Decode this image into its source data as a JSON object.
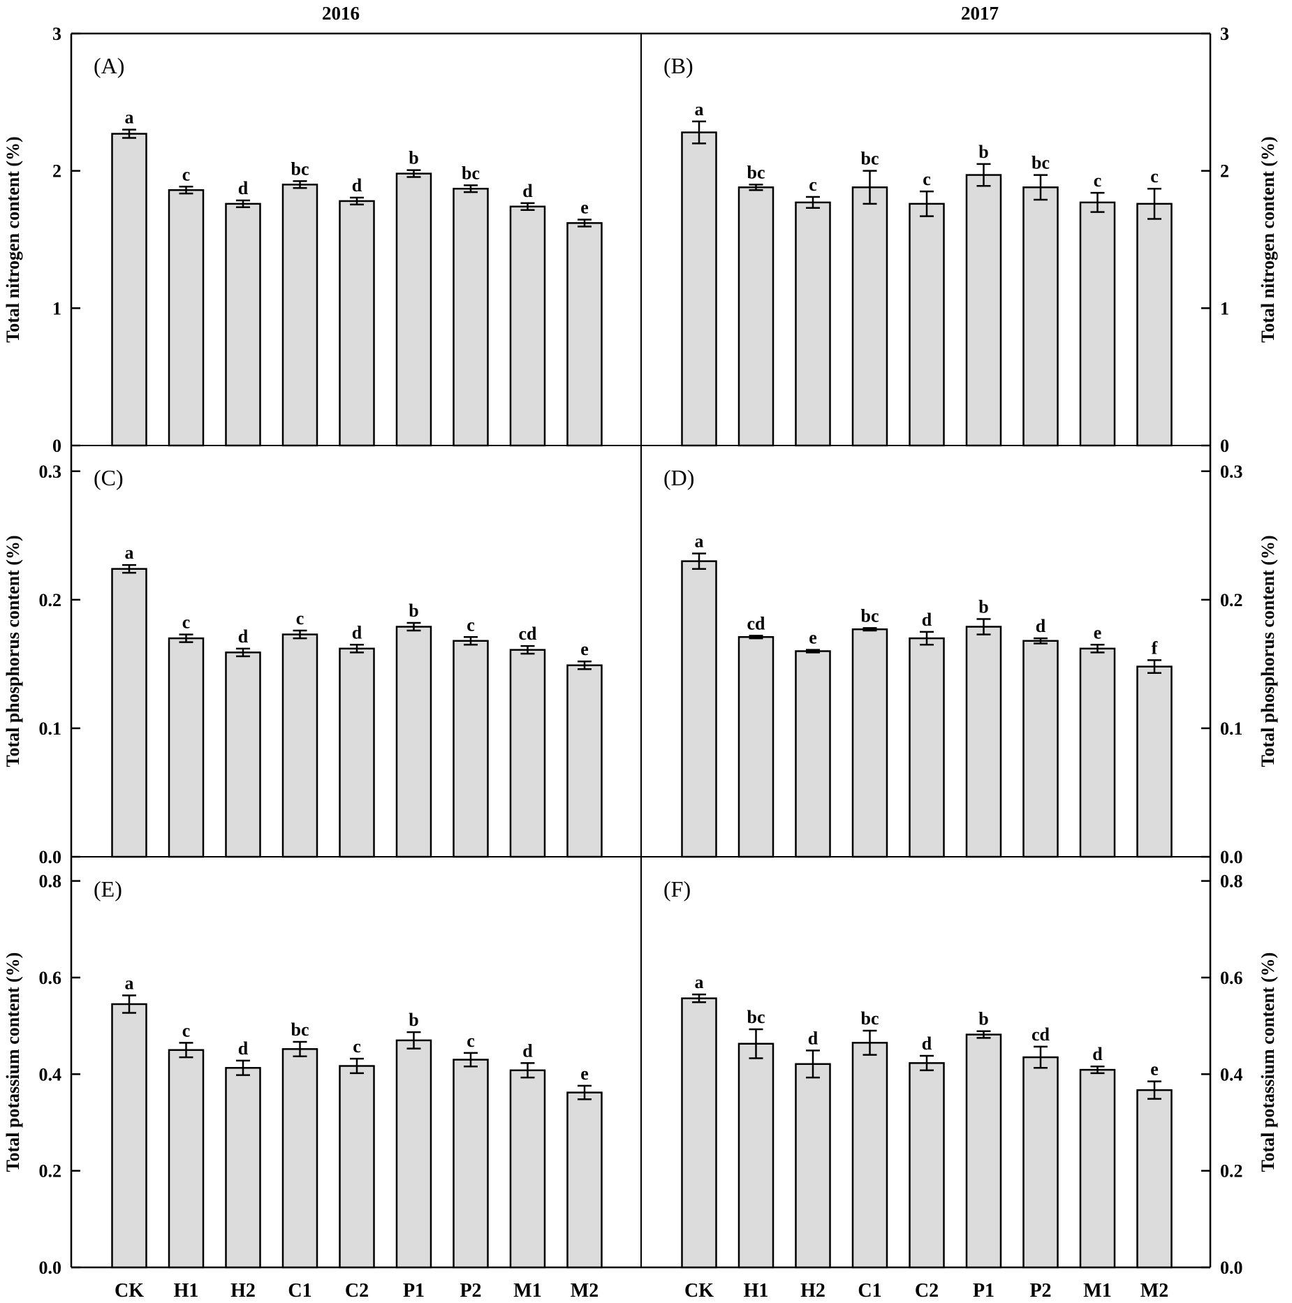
{
  "chart_data": {
    "type": "bar",
    "year_titles": [
      "2016",
      "2017"
    ],
    "categories": [
      "CK",
      "H1",
      "H2",
      "C1",
      "C2",
      "P1",
      "P2",
      "M1",
      "M2"
    ],
    "rows": [
      {
        "ylabel": "Total nitrogen content (%)",
        "ylim": [
          0,
          3
        ],
        "ticks": [
          "0",
          "1",
          "2",
          "3"
        ],
        "tick_values": [
          0,
          1,
          2,
          3
        ]
      },
      {
        "ylabel": "Total phosphorus content (%)",
        "ylim": [
          0,
          0.32
        ],
        "ticks": [
          "0.0",
          "0.1",
          "0.2",
          "0.3"
        ],
        "tick_values": [
          0,
          0.1,
          0.2,
          0.3
        ]
      },
      {
        "ylabel": "Total potassium content (%)",
        "ylim": [
          0,
          0.85
        ],
        "ticks": [
          "0.0",
          "0.2",
          "0.4",
          "0.6",
          "0.8"
        ],
        "tick_values": [
          0,
          0.2,
          0.4,
          0.6,
          0.8
        ]
      }
    ],
    "panels": [
      {
        "label": "(A)",
        "year": "2016",
        "values": [
          2.27,
          1.86,
          1.76,
          1.9,
          1.78,
          1.98,
          1.87,
          1.74,
          1.62
        ],
        "errors": [
          0.03,
          0.025,
          0.025,
          0.025,
          0.025,
          0.025,
          0.025,
          0.025,
          0.025
        ],
        "letters": [
          "a",
          "c",
          "d",
          "bc",
          "d",
          "b",
          "bc",
          "d",
          "e"
        ]
      },
      {
        "label": "(B)",
        "year": "2017",
        "values": [
          2.28,
          1.88,
          1.77,
          1.88,
          1.76,
          1.97,
          1.88,
          1.77,
          1.76
        ],
        "errors": [
          0.08,
          0.02,
          0.04,
          0.12,
          0.09,
          0.08,
          0.09,
          0.07,
          0.11
        ],
        "letters": [
          "a",
          "bc",
          "c",
          "bc",
          "c",
          "b",
          "bc",
          "c",
          "c"
        ]
      },
      {
        "label": "(C)",
        "year": "2016",
        "values": [
          0.224,
          0.17,
          0.159,
          0.173,
          0.162,
          0.179,
          0.168,
          0.161,
          0.149
        ],
        "errors": [
          0.003,
          0.003,
          0.003,
          0.003,
          0.003,
          0.003,
          0.003,
          0.003,
          0.003
        ],
        "letters": [
          "a",
          "c",
          "d",
          "c",
          "d",
          "b",
          "c",
          "cd",
          "e"
        ]
      },
      {
        "label": "(D)",
        "year": "2017",
        "values": [
          0.23,
          0.171,
          0.16,
          0.177,
          0.17,
          0.179,
          0.168,
          0.162,
          0.148
        ],
        "errors": [
          0.006,
          0.001,
          0.001,
          0.001,
          0.005,
          0.006,
          0.002,
          0.003,
          0.005
        ],
        "letters": [
          "a",
          "cd",
          "e",
          "bc",
          "d",
          "b",
          "d",
          "e",
          "f"
        ]
      },
      {
        "label": "(E)",
        "year": "2016",
        "values": [
          0.545,
          0.45,
          0.413,
          0.452,
          0.417,
          0.47,
          0.43,
          0.408,
          0.362
        ],
        "errors": [
          0.018,
          0.015,
          0.015,
          0.015,
          0.015,
          0.017,
          0.014,
          0.015,
          0.014
        ],
        "letters": [
          "a",
          "c",
          "d",
          "bc",
          "c",
          "b",
          "c",
          "d",
          "e"
        ]
      },
      {
        "label": "(F)",
        "year": "2017",
        "values": [
          0.557,
          0.463,
          0.421,
          0.465,
          0.423,
          0.482,
          0.435,
          0.409,
          0.367
        ],
        "errors": [
          0.008,
          0.03,
          0.028,
          0.025,
          0.015,
          0.007,
          0.022,
          0.007,
          0.018
        ],
        "letters": [
          "a",
          "bc",
          "d",
          "bc",
          "d",
          "b",
          "cd",
          "d",
          "e"
        ]
      }
    ]
  }
}
